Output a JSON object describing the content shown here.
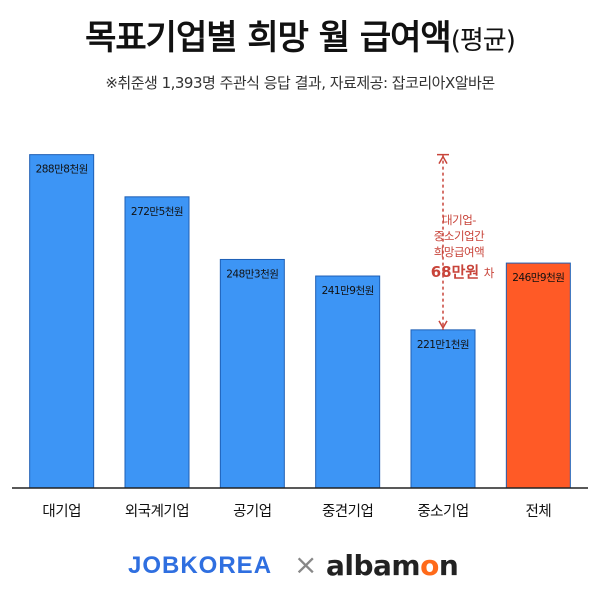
{
  "header": {
    "title": "목표기업별 희망 월 급여액",
    "title_suffix": "(평균)",
    "subtitle": "※취준생 1,393명 주관식 응답 결과, 자료제공: 잡코리아X알바몬"
  },
  "chart_data": {
    "type": "bar",
    "categories": [
      "대기업",
      "외국계기업",
      "공기업",
      "중견기업",
      "중소기업",
      "전체"
    ],
    "values": [
      2888,
      2725,
      2483,
      2419,
      2211,
      2469
    ],
    "value_labels": [
      "288만8천원",
      "272만5천원",
      "248만3천원",
      "241만9천원",
      "221만1천원",
      "246만9천원"
    ],
    "unit": "천원",
    "ylim": [
      1600,
      2960
    ],
    "colors": [
      "#3d95f5",
      "#3d95f5",
      "#3d95f5",
      "#3d95f5",
      "#3d95f5",
      "#ff5a26"
    ],
    "annotation": {
      "from": "대기업",
      "to": "중소기업",
      "line1": "대기업-",
      "line2": "중소기업간",
      "line3": "희망급여액",
      "value": "68만원",
      "suffix": "차",
      "color": "#c8443a"
    }
  },
  "logos": {
    "jobkorea": "JOBKOREA",
    "separator": "×",
    "albamon_a": "albam",
    "albamon_b": "o",
    "albamon_c": "n"
  }
}
